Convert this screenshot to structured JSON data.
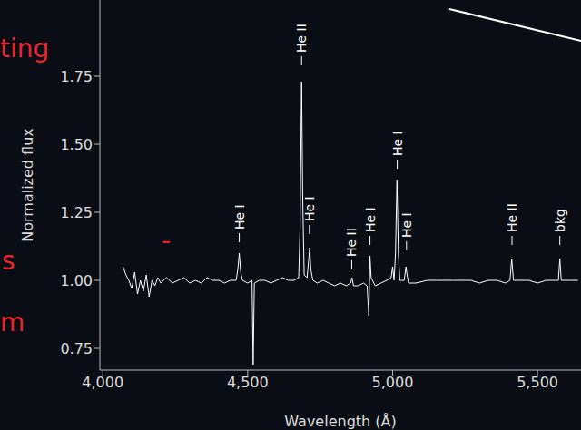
{
  "chart_data": {
    "type": "line",
    "x_label": "Wavelength (Å)",
    "y_label": "Normalized flux",
    "color": "#ffffff",
    "xlim": [
      3990,
      5650
    ],
    "xticks": [
      {
        "value": 4000,
        "label": "4,000"
      },
      {
        "value": 4500,
        "label": "4,500"
      },
      {
        "value": 5000,
        "label": "5,000"
      },
      {
        "value": 5500,
        "label": "5,500"
      }
    ],
    "ylim": [
      0.67,
      2.03
    ],
    "yticks": [
      0.75,
      {
        "value": 1,
        "label": "1.00"
      },
      1.25,
      {
        "value": 1.5,
        "label": "1.50"
      },
      1.75
    ],
    "x": [
      4070,
      4080,
      4090,
      4100,
      4110,
      4120,
      4130,
      4140,
      4150,
      4160,
      4170,
      4180,
      4190,
      4200,
      4220,
      4240,
      4260,
      4280,
      4300,
      4320,
      4340,
      4360,
      4380,
      4400,
      4420,
      4440,
      4460,
      4466,
      4471,
      4476,
      4482,
      4500,
      4515,
      4519,
      4523,
      4540,
      4560,
      4580,
      4600,
      4620,
      4640,
      4660,
      4676,
      4681,
      4686,
      4690,
      4695,
      4705,
      4710,
      4714,
      4718,
      4725,
      4740,
      4760,
      4780,
      4800,
      4820,
      4840,
      4855,
      4860,
      4865,
      4880,
      4900,
      4912,
      4918,
      4922,
      4926,
      4940,
      4960,
      4980,
      4995,
      5000,
      5005,
      5010,
      5015,
      5020,
      5025,
      5040,
      5046,
      5050,
      5055,
      5080,
      5120,
      5150,
      5180,
      5210,
      5240,
      5270,
      5300,
      5330,
      5360,
      5390,
      5405,
      5411,
      5417,
      5440,
      5470,
      5500,
      5530,
      5560,
      5572,
      5577,
      5582,
      5610,
      5640
    ],
    "values": [
      1.05,
      1.02,
      1.0,
      0.97,
      1.03,
      0.95,
      1.0,
      0.96,
      1.02,
      0.94,
      1.0,
      0.98,
      1.01,
      0.99,
      1.01,
      0.99,
      1.0,
      1.01,
      0.99,
      1.0,
      0.99,
      1.01,
      1.0,
      1.0,
      0.99,
      1.0,
      1.0,
      1.04,
      1.1,
      1.03,
      1.0,
      0.99,
      1.0,
      0.69,
      0.99,
      1.0,
      1.0,
      0.99,
      1.0,
      1.01,
      1.0,
      1.0,
      1.01,
      1.2,
      1.73,
      1.3,
      1.02,
      1.01,
      1.07,
      1.12,
      1.04,
      1.0,
      0.99,
      1.0,
      0.99,
      0.98,
      0.99,
      0.98,
      0.99,
      1.01,
      0.98,
      0.98,
      0.99,
      0.98,
      0.87,
      1.09,
      1.01,
      0.98,
      0.99,
      1.0,
      1.01,
      1.05,
      1.0,
      1.1,
      1.37,
      1.1,
      1.0,
      1.0,
      1.05,
      1.02,
      0.99,
      0.99,
      1.0,
      1.0,
      1.0,
      1.0,
      1.0,
      1.0,
      0.99,
      1.0,
      1.0,
      0.99,
      1.0,
      1.08,
      1.0,
      1.0,
      1.0,
      0.99,
      1.0,
      1.0,
      1.0,
      1.08,
      1.0,
      1.0,
      1.0
    ],
    "line_labels": [
      {
        "label": "He I",
        "x": 4471,
        "y": 1.14
      },
      {
        "label": "He II",
        "x": 4686,
        "y": 1.79
      },
      {
        "label": "He I",
        "x": 4713,
        "y": 1.17
      },
      {
        "label": "He II",
        "x": 4859,
        "y": 1.04
      },
      {
        "label": "He I",
        "x": 4922,
        "y": 1.13
      },
      {
        "label": "He I",
        "x": 5016,
        "y": 1.41
      },
      {
        "label": "He I",
        "x": 5048,
        "y": 1.11
      },
      {
        "label": "He II",
        "x": 5412,
        "y": 1.13
      },
      {
        "label": "bkg",
        "x": 5577,
        "y": 1.13
      }
    ],
    "annotations": [
      {
        "text": "ting",
        "color": "#e8262a"
      },
      {
        "text": "-",
        "color": "#e8262a"
      },
      {
        "text": "s",
        "color": "#e8262a"
      },
      {
        "text": "m",
        "color": "#e8262a"
      }
    ]
  }
}
